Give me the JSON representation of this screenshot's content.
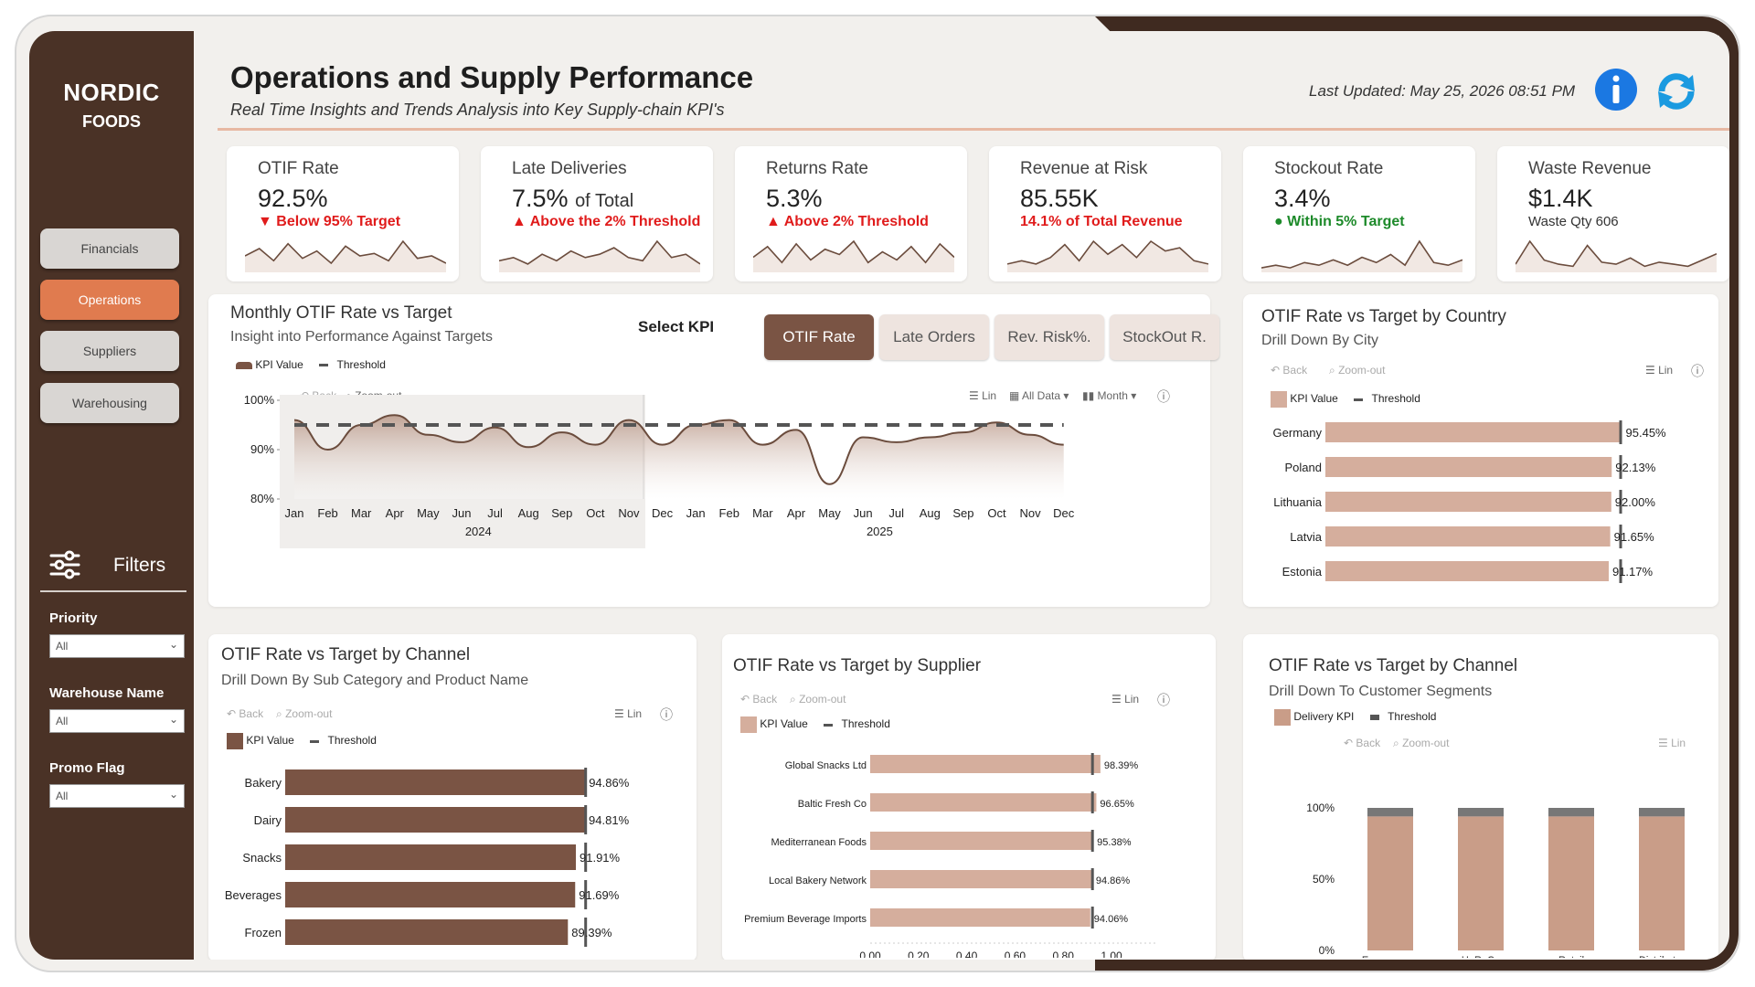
{
  "brand": {
    "line1": "NORDIC",
    "line2": "FOODS"
  },
  "nav": [
    {
      "label": "Financials",
      "active": false
    },
    {
      "label": "Operations",
      "active": true
    },
    {
      "label": "Suppliers",
      "active": false
    },
    {
      "label": "Warehousing",
      "active": false
    }
  ],
  "filters": {
    "title": "Filters",
    "items": [
      {
        "label": "Priority",
        "value": "All"
      },
      {
        "label": "Warehouse Name",
        "value": "All"
      },
      {
        "label": "Promo Flag",
        "value": "All"
      }
    ]
  },
  "header": {
    "title": "Operations and Supply Performance",
    "subtitle": "Real Time Insights and Trends Analysis into Key Supply-chain KPI's",
    "last_updated": "Last Updated: May 25, 2026 08:51 PM"
  },
  "kpis": [
    {
      "title": "OTIF Rate",
      "value": "92.5%",
      "value_suffix": "",
      "status": "▼ Below 95% Target",
      "status_color": "red",
      "spark": [
        6,
        9,
        4,
        11,
        5,
        8,
        3,
        10,
        6,
        7,
        4,
        12,
        5,
        6,
        3
      ]
    },
    {
      "title": "Late Deliveries",
      "value": "7.5%",
      "value_suffix": "of Total",
      "status": "▲ Above the 2% Threshold",
      "status_color": "red",
      "spark": [
        3,
        4,
        2,
        5,
        3,
        6,
        4,
        5,
        7,
        4,
        3,
        9,
        4,
        5,
        2
      ]
    },
    {
      "title": "Returns Rate",
      "value": "5.3%",
      "value_suffix": "",
      "status": "▲ Above 2% Threshold",
      "status_color": "red",
      "spark": [
        5,
        9,
        3,
        10,
        4,
        8,
        6,
        11,
        3,
        7,
        4,
        9,
        3,
        10,
        5
      ]
    },
    {
      "title": "Revenue at Risk",
      "value": "85.55K",
      "value_suffix": "",
      "status": "14.1% of Total Revenue",
      "status_color": "red",
      "spark": [
        2,
        3,
        2,
        4,
        8,
        3,
        9,
        5,
        8,
        4,
        9,
        6,
        7,
        3,
        2
      ]
    },
    {
      "title": "Stockout Rate",
      "value": "3.4%",
      "value_suffix": "",
      "status": "● Within 5% Target",
      "status_color": "green",
      "spark": [
        1,
        2,
        1,
        3,
        2,
        4,
        2,
        5,
        3,
        6,
        2,
        11,
        3,
        2,
        4
      ]
    },
    {
      "title": "Waste Revenue",
      "value": "$1.4K",
      "value_suffix": "",
      "status": "Waste Qty 606",
      "status_color": "none",
      "spark": [
        3,
        14,
        5,
        3,
        2,
        12,
        4,
        3,
        6,
        2,
        4,
        3,
        2,
        5,
        8
      ]
    }
  ],
  "monthly": {
    "title": "Monthly OTIF Rate vs Target",
    "subtitle": "Insight into Performance Against Targets",
    "select_label": "Select KPI",
    "tabs": [
      "OTIF Rate",
      "Late Orders",
      "Rev. Risk%.",
      "StockOut R."
    ],
    "legend_kpi": "KPI Value",
    "legend_threshold": "Threshold",
    "toolbar": {
      "back": "Back",
      "zoom": "Zoom-out",
      "lin": "Lin",
      "all_data": "All Data",
      "month": "Month"
    }
  },
  "country": {
    "title": "OTIF Rate vs Target by Country",
    "subtitle": "Drill Down By City",
    "legend_kpi": "KPI Value",
    "legend_threshold": "Threshold",
    "toolbar": {
      "back": "Back",
      "zoom": "Zoom-out",
      "lin": "Lin"
    }
  },
  "channel": {
    "title": "OTIF Rate vs Target by Channel",
    "subtitle": "Drill Down By Sub Category and Product Name",
    "legend_kpi": "KPI Value",
    "legend_threshold": "Threshold",
    "toolbar": {
      "back": "Back",
      "zoom": "Zoom-out",
      "lin": "Lin"
    }
  },
  "supplier": {
    "title": "OTIF Rate vs Target by Supplier",
    "legend_kpi": "KPI Value",
    "legend_threshold": "Threshold",
    "toolbar": {
      "back": "Back",
      "zoom": "Zoom-out",
      "lin": "Lin"
    }
  },
  "segments": {
    "title": "OTIF Rate vs Target by Channel",
    "subtitle": "Drill Down To Customer Segments",
    "legend_kpi": "Delivery KPI",
    "legend_threshold": "Threshold",
    "toolbar": {
      "back": "Back",
      "zoom": "Zoom-out",
      "lin": "Lin"
    }
  },
  "colors": {
    "brown": "#4a3226",
    "accent": "#e07b4f",
    "bar_dark": "#7a5444",
    "bar_light": "#d5ae9d"
  },
  "chart_data": [
    {
      "type": "area",
      "x": [
        "Jan",
        "Feb",
        "Mar",
        "Apr",
        "May",
        "Jun",
        "Jul",
        "Aug",
        "Sep",
        "Oct",
        "Nov",
        "Dec",
        "Jan",
        "Feb",
        "Mar",
        "Apr",
        "May",
        "Jun",
        "Jul",
        "Aug",
        "Sep",
        "Oct",
        "Nov",
        "Dec"
      ],
      "x_groups": [
        {
          "label": "2024",
          "span": 12
        },
        {
          "label": "2025",
          "span": 12
        }
      ],
      "values": [
        96,
        90,
        95,
        97,
        93,
        91.5,
        94.5,
        90.5,
        93.5,
        91,
        96,
        91,
        95,
        96,
        91,
        94,
        83,
        92.5,
        91.5,
        92.5,
        93.5,
        95.5,
        93,
        91
      ],
      "threshold": 95,
      "yticks": [
        "80%",
        "90%",
        "100%"
      ],
      "ylim": [
        80,
        100
      ]
    },
    {
      "type": "bar",
      "orientation": "horizontal",
      "categories": [
        "Germany",
        "Poland",
        "Lithuania",
        "Latvia",
        "Estonia"
      ],
      "values": [
        95.45,
        92.13,
        92.0,
        91.65,
        91.17
      ],
      "labels": [
        "95.45%",
        "92.13%",
        "92.00%",
        "91.65%",
        "91.17%"
      ],
      "threshold": 95
    },
    {
      "type": "bar",
      "orientation": "horizontal",
      "categories": [
        "Bakery",
        "Dairy",
        "Snacks",
        "Beverages",
        "Frozen"
      ],
      "values": [
        94.86,
        94.81,
        91.91,
        91.69,
        89.39
      ],
      "labels": [
        "94.86%",
        "94.81%",
        "91.91%",
        "91.69%",
        "89.39%"
      ],
      "threshold": 95
    },
    {
      "type": "bar",
      "orientation": "horizontal",
      "categories": [
        "Global Snacks Ltd",
        "Baltic Fresh Co",
        "Mediterranean Foods",
        "Local Bakery Network",
        "Premium Beverage Imports"
      ],
      "values": [
        98.39,
        96.65,
        95.38,
        94.86,
        94.06
      ],
      "labels": [
        "98.39%",
        "96.65%",
        "95.38%",
        "94.86%",
        "94.06%"
      ],
      "threshold": 95,
      "xticks": [
        "0.00",
        "0.20",
        "0.40",
        "0.60",
        "0.80",
        "1.00"
      ]
    },
    {
      "type": "bar",
      "orientation": "vertical",
      "stacked": true,
      "categories": [
        "E-commerce",
        "HoReCa",
        "Retail",
        "Distributor"
      ],
      "values": [
        94,
        94,
        94,
        94
      ],
      "threshold": 95,
      "yticks": [
        "0%",
        "50%",
        "100%"
      ]
    }
  ]
}
